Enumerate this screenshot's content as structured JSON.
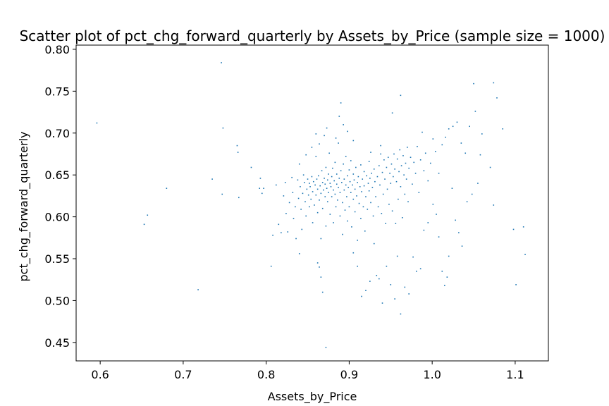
{
  "chart_data": {
    "type": "scatter",
    "title": "Scatter plot of pct_chg_forward_quarterly by Assets_by_Price (sample size = 1000)",
    "xlabel": "Assets_by_Price",
    "ylabel": "pct_chg_forward_quarterly",
    "xlim": [
      0.571,
      1.14
    ],
    "ylim": [
      0.428,
      0.805
    ],
    "xticks": [
      0.6,
      0.7,
      0.8,
      0.9,
      1.0,
      1.1
    ],
    "xtick_labels": [
      "0.6",
      "0.7",
      "0.8",
      "0.9",
      "1.0",
      "1.1"
    ],
    "yticks": [
      0.45,
      0.5,
      0.55,
      0.6,
      0.65,
      0.7,
      0.75,
      0.8
    ],
    "ytick_labels": [
      "0.45",
      "0.50",
      "0.55",
      "0.60",
      "0.65",
      "0.70",
      "0.75",
      "0.80"
    ],
    "grid": false,
    "marker_color": "#1f77b4",
    "points": [
      [
        0.596,
        0.712
      ],
      [
        0.653,
        0.591
      ],
      [
        0.657,
        0.602
      ],
      [
        0.68,
        0.634
      ],
      [
        0.718,
        0.513
      ],
      [
        0.735,
        0.645
      ],
      [
        0.746,
        0.784
      ],
      [
        0.748,
        0.706
      ],
      [
        0.747,
        0.627
      ],
      [
        0.765,
        0.685
      ],
      [
        0.766,
        0.677
      ],
      [
        0.767,
        0.623
      ],
      [
        0.782,
        0.659
      ],
      [
        0.792,
        0.634
      ],
      [
        0.793,
        0.646
      ],
      [
        0.795,
        0.628
      ],
      [
        0.797,
        0.634
      ],
      [
        0.806,
        0.541
      ],
      [
        0.808,
        0.578
      ],
      [
        0.812,
        0.638
      ],
      [
        0.815,
        0.591
      ],
      [
        0.818,
        0.581
      ],
      [
        0.821,
        0.625
      ],
      [
        0.823,
        0.641
      ],
      [
        0.824,
        0.604
      ],
      [
        0.826,
        0.582
      ],
      [
        0.828,
        0.617
      ],
      [
        0.831,
        0.647
      ],
      [
        0.832,
        0.629
      ],
      [
        0.833,
        0.598
      ],
      [
        0.835,
        0.612
      ],
      [
        0.836,
        0.574
      ],
      [
        0.838,
        0.644
      ],
      [
        0.839,
        0.622
      ],
      [
        0.84,
        0.556
      ],
      [
        0.841,
        0.636
      ],
      [
        0.842,
        0.609
      ],
      [
        0.843,
        0.585
      ],
      [
        0.844,
        0.628
      ],
      [
        0.845,
        0.65
      ],
      [
        0.846,
        0.641
      ],
      [
        0.847,
        0.618
      ],
      [
        0.848,
        0.601
      ],
      [
        0.849,
        0.633
      ],
      [
        0.85,
        0.645
      ],
      [
        0.851,
        0.626
      ],
      [
        0.852,
        0.612
      ],
      [
        0.852,
        0.64
      ],
      [
        0.853,
        0.636
      ],
      [
        0.854,
        0.621
      ],
      [
        0.855,
        0.648
      ],
      [
        0.856,
        0.63
      ],
      [
        0.856,
        0.593
      ],
      [
        0.857,
        0.642
      ],
      [
        0.858,
        0.614
      ],
      [
        0.859,
        0.638
      ],
      [
        0.86,
        0.626
      ],
      [
        0.86,
        0.672
      ],
      [
        0.861,
        0.645
      ],
      [
        0.862,
        0.605
      ],
      [
        0.862,
        0.633
      ],
      [
        0.863,
        0.649
      ],
      [
        0.864,
        0.62
      ],
      [
        0.864,
        0.687
      ],
      [
        0.865,
        0.637
      ],
      [
        0.866,
        0.574
      ],
      [
        0.866,
        0.628
      ],
      [
        0.867,
        0.655
      ],
      [
        0.868,
        0.641
      ],
      [
        0.868,
        0.61
      ],
      [
        0.869,
        0.632
      ],
      [
        0.87,
        0.646
      ],
      [
        0.87,
        0.697
      ],
      [
        0.871,
        0.624
      ],
      [
        0.871,
        0.639
      ],
      [
        0.872,
        0.659
      ],
      [
        0.872,
        0.589
      ],
      [
        0.873,
        0.634
      ],
      [
        0.874,
        0.644
      ],
      [
        0.874,
        0.618
      ],
      [
        0.875,
        0.651
      ],
      [
        0.875,
        0.629
      ],
      [
        0.876,
        0.676
      ],
      [
        0.877,
        0.64
      ],
      [
        0.877,
        0.603
      ],
      [
        0.878,
        0.636
      ],
      [
        0.879,
        0.648
      ],
      [
        0.879,
        0.624
      ],
      [
        0.88,
        0.658
      ],
      [
        0.881,
        0.632
      ],
      [
        0.881,
        0.593
      ],
      [
        0.882,
        0.643
      ],
      [
        0.883,
        0.627
      ],
      [
        0.883,
        0.665
      ],
      [
        0.884,
        0.612
      ],
      [
        0.885,
        0.639
      ],
      [
        0.885,
        0.651
      ],
      [
        0.886,
        0.62
      ],
      [
        0.887,
        0.688
      ],
      [
        0.887,
        0.635
      ],
      [
        0.888,
        0.646
      ],
      [
        0.889,
        0.601
      ],
      [
        0.889,
        0.629
      ],
      [
        0.89,
        0.736
      ],
      [
        0.89,
        0.655
      ],
      [
        0.891,
        0.641
      ],
      [
        0.892,
        0.617
      ],
      [
        0.892,
        0.579
      ],
      [
        0.893,
        0.663
      ],
      [
        0.894,
        0.632
      ],
      [
        0.894,
        0.645
      ],
      [
        0.895,
        0.608
      ],
      [
        0.896,
        0.638
      ],
      [
        0.896,
        0.672
      ],
      [
        0.897,
        0.624
      ],
      [
        0.898,
        0.649
      ],
      [
        0.898,
        0.595
      ],
      [
        0.899,
        0.635
      ],
      [
        0.9,
        0.656
      ],
      [
        0.9,
        0.612
      ],
      [
        0.901,
        0.642
      ],
      [
        0.902,
        0.629
      ],
      [
        0.902,
        0.667
      ],
      [
        0.903,
        0.588
      ],
      [
        0.904,
        0.638
      ],
      [
        0.905,
        0.651
      ],
      [
        0.905,
        0.621
      ],
      [
        0.906,
        0.644
      ],
      [
        0.907,
        0.606
      ],
      [
        0.907,
        0.633
      ],
      [
        0.908,
        0.659
      ],
      [
        0.909,
        0.625
      ],
      [
        0.91,
        0.641
      ],
      [
        0.91,
        0.572
      ],
      [
        0.911,
        0.648
      ],
      [
        0.912,
        0.616
      ],
      [
        0.913,
        0.636
      ],
      [
        0.914,
        0.662
      ],
      [
        0.914,
        0.598
      ],
      [
        0.915,
        0.63
      ],
      [
        0.916,
        0.645
      ],
      [
        0.917,
        0.612
      ],
      [
        0.918,
        0.654
      ],
      [
        0.918,
        0.637
      ],
      [
        0.919,
        0.583
      ],
      [
        0.92,
        0.624
      ],
      [
        0.921,
        0.649
      ],
      [
        0.922,
        0.609
      ],
      [
        0.923,
        0.64
      ],
      [
        0.924,
        0.666
      ],
      [
        0.924,
        0.631
      ],
      [
        0.925,
        0.646
      ],
      [
        0.926,
        0.617
      ],
      [
        0.927,
        0.652
      ],
      [
        0.928,
        0.635
      ],
      [
        0.929,
        0.601
      ],
      [
        0.93,
        0.657
      ],
      [
        0.931,
        0.642
      ],
      [
        0.932,
        0.624
      ],
      [
        0.933,
        0.53
      ],
      [
        0.934,
        0.648
      ],
      [
        0.935,
        0.612
      ],
      [
        0.936,
        0.661
      ],
      [
        0.937,
        0.638
      ],
      [
        0.938,
        0.675
      ],
      [
        0.939,
        0.604
      ],
      [
        0.94,
        0.653
      ],
      [
        0.941,
        0.627
      ],
      [
        0.942,
        0.668
      ],
      [
        0.943,
        0.645
      ],
      [
        0.944,
        0.592
      ],
      [
        0.945,
        0.659
      ],
      [
        0.946,
        0.633
      ],
      [
        0.947,
        0.671
      ],
      [
        0.948,
        0.615
      ],
      [
        0.949,
        0.652
      ],
      [
        0.95,
        0.64
      ],
      [
        0.951,
        0.663
      ],
      [
        0.952,
        0.607
      ],
      [
        0.953,
        0.648
      ],
      [
        0.954,
        0.675
      ],
      [
        0.955,
        0.657
      ],
      [
        0.956,
        0.592
      ],
      [
        0.957,
        0.642
      ],
      [
        0.958,
        0.669
      ],
      [
        0.959,
        0.621
      ],
      [
        0.96,
        0.654
      ],
      [
        0.961,
        0.68
      ],
      [
        0.962,
        0.636
      ],
      [
        0.963,
        0.661
      ],
      [
        0.964,
        0.599
      ],
      [
        0.965,
        0.673
      ],
      [
        0.966,
        0.65
      ],
      [
        0.967,
        0.627
      ],
      [
        0.968,
        0.664
      ],
      [
        0.969,
        0.645
      ],
      [
        0.97,
        0.683
      ],
      [
        0.971,
        0.618
      ],
      [
        0.972,
        0.658
      ],
      [
        0.974,
        0.671
      ],
      [
        0.976,
        0.639
      ],
      [
        0.978,
        0.665
      ],
      [
        0.98,
        0.652
      ],
      [
        0.982,
        0.684
      ],
      [
        0.984,
        0.629
      ],
      [
        0.986,
        0.668
      ],
      [
        0.988,
        0.701
      ],
      [
        0.99,
        0.655
      ],
      [
        0.992,
        0.676
      ],
      [
        0.995,
        0.643
      ],
      [
        0.998,
        0.664
      ],
      [
        1.001,
        0.693
      ],
      [
        1.004,
        0.678
      ],
      [
        1.008,
        0.652
      ],
      [
        1.012,
        0.686
      ],
      [
        1.016,
        0.695
      ],
      [
        1.02,
        0.705
      ],
      [
        1.025,
        0.708
      ],
      [
        1.03,
        0.713
      ],
      [
        1.035,
        0.688
      ],
      [
        1.04,
        0.676
      ],
      [
        1.045,
        0.708
      ],
      [
        1.05,
        0.759
      ],
      [
        1.052,
        0.726
      ],
      [
        1.074,
        0.76
      ],
      [
        1.078,
        0.742
      ],
      [
        1.085,
        0.705
      ],
      [
        1.07,
        0.659
      ],
      [
        1.074,
        0.614
      ],
      [
        1.098,
        0.585
      ],
      [
        1.11,
        0.588
      ],
      [
        1.112,
        0.555
      ],
      [
        1.101,
        0.519
      ],
      [
        1.06,
        0.699
      ],
      [
        1.058,
        0.674
      ],
      [
        1.055,
        0.64
      ],
      [
        1.048,
        0.627
      ],
      [
        1.042,
        0.618
      ],
      [
        1.036,
        0.565
      ],
      [
        1.032,
        0.581
      ],
      [
        1.028,
        0.596
      ],
      [
        1.024,
        0.634
      ],
      [
        1.02,
        0.553
      ],
      [
        1.018,
        0.528
      ],
      [
        1.015,
        0.518
      ],
      [
        1.012,
        0.535
      ],
      [
        1.008,
        0.576
      ],
      [
        1.005,
        0.603
      ],
      [
        1.001,
        0.615
      ],
      [
        0.995,
        0.593
      ],
      [
        0.99,
        0.584
      ],
      [
        0.986,
        0.538
      ],
      [
        0.981,
        0.535
      ],
      [
        0.977,
        0.552
      ],
      [
        0.972,
        0.508
      ],
      [
        0.967,
        0.516
      ],
      [
        0.962,
        0.484
      ],
      [
        0.958,
        0.553
      ],
      [
        0.955,
        0.502
      ],
      [
        0.95,
        0.519
      ],
      [
        0.945,
        0.541
      ],
      [
        0.94,
        0.497
      ],
      [
        0.936,
        0.526
      ],
      [
        0.93,
        0.568
      ],
      [
        0.925,
        0.523
      ],
      [
        0.92,
        0.512
      ],
      [
        0.915,
        0.505
      ],
      [
        0.91,
        0.541
      ],
      [
        0.905,
        0.557
      ],
      [
        0.872,
        0.444
      ],
      [
        0.868,
        0.51
      ],
      [
        0.866,
        0.528
      ],
      [
        0.864,
        0.54
      ],
      [
        0.862,
        0.545
      ],
      [
        0.926,
        0.677
      ],
      [
        0.938,
        0.685
      ],
      [
        0.962,
        0.745
      ],
      [
        0.952,
        0.724
      ],
      [
        0.888,
        0.72
      ],
      [
        0.893,
        0.71
      ],
      [
        0.898,
        0.702
      ],
      [
        0.905,
        0.691
      ],
      [
        0.884,
        0.694
      ],
      [
        0.873,
        0.706
      ],
      [
        0.86,
        0.699
      ],
      [
        0.855,
        0.683
      ],
      [
        0.848,
        0.674
      ],
      [
        0.84,
        0.663
      ]
    ]
  }
}
